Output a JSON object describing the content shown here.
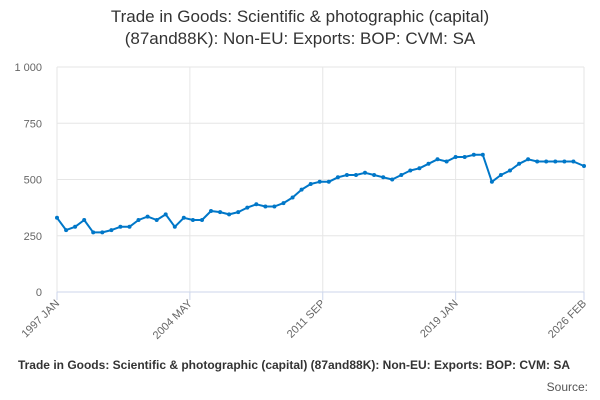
{
  "chart_data": {
    "type": "line",
    "title_lines": [
      "Trade in Goods: Scientific & photographic (capital)",
      "(87and88K): Non-EU: Exports: BOP: CVM: SA"
    ],
    "legend": "Trade in Goods: Scientific & photographic (capital) (87and88K): Non-EU: Exports: BOP: CVM: SA",
    "source_label": "Source:",
    "xlabel": "",
    "ylabel": "",
    "ylim": [
      0,
      1000
    ],
    "yticks": [
      0,
      250,
      500,
      750,
      1000
    ],
    "ytick_labels": [
      "0",
      "250",
      "500",
      "750",
      "1 000"
    ],
    "xlim": [
      "1997-01",
      "2026-02"
    ],
    "xticks": [
      "1997-01",
      "2004-05",
      "2011-09",
      "2019-01",
      "2026-02"
    ],
    "xtick_labels": [
      "1997 JAN",
      "2004 MAY",
      "2011 SEP",
      "2019 JAN",
      "2026 FEB"
    ],
    "grid": true,
    "series_color": "#0077c8",
    "series": [
      {
        "name": "",
        "x": [
          "1997-01",
          "1997-07",
          "1998-01",
          "1998-07",
          "1999-01",
          "1999-07",
          "2000-01",
          "2000-07",
          "2001-01",
          "2001-07",
          "2002-01",
          "2002-07",
          "2003-01",
          "2003-07",
          "2004-01",
          "2004-07",
          "2005-01",
          "2005-07",
          "2006-01",
          "2006-07",
          "2007-01",
          "2007-07",
          "2008-01",
          "2008-07",
          "2009-01",
          "2009-07",
          "2010-01",
          "2010-07",
          "2011-01",
          "2011-07",
          "2012-01",
          "2012-07",
          "2013-01",
          "2013-07",
          "2014-01",
          "2014-07",
          "2015-01",
          "2015-07",
          "2016-01",
          "2016-07",
          "2017-01",
          "2017-07",
          "2018-01",
          "2018-07",
          "2019-01",
          "2019-07",
          "2020-01",
          "2020-07",
          "2021-01",
          "2021-07",
          "2022-01",
          "2022-07",
          "2023-01",
          "2023-07",
          "2024-01",
          "2024-07",
          "2025-01",
          "2025-07",
          "2026-02"
        ],
        "values": [
          330,
          275,
          290,
          320,
          265,
          265,
          275,
          290,
          290,
          320,
          335,
          320,
          345,
          290,
          330,
          320,
          320,
          360,
          355,
          345,
          355,
          375,
          390,
          380,
          380,
          395,
          420,
          455,
          480,
          490,
          490,
          510,
          520,
          520,
          530,
          520,
          510,
          500,
          520,
          540,
          550,
          570,
          590,
          580,
          600,
          600,
          610,
          610,
          490,
          520,
          540,
          570,
          590,
          580,
          580,
          580,
          580,
          580,
          560
        ]
      }
    ]
  }
}
